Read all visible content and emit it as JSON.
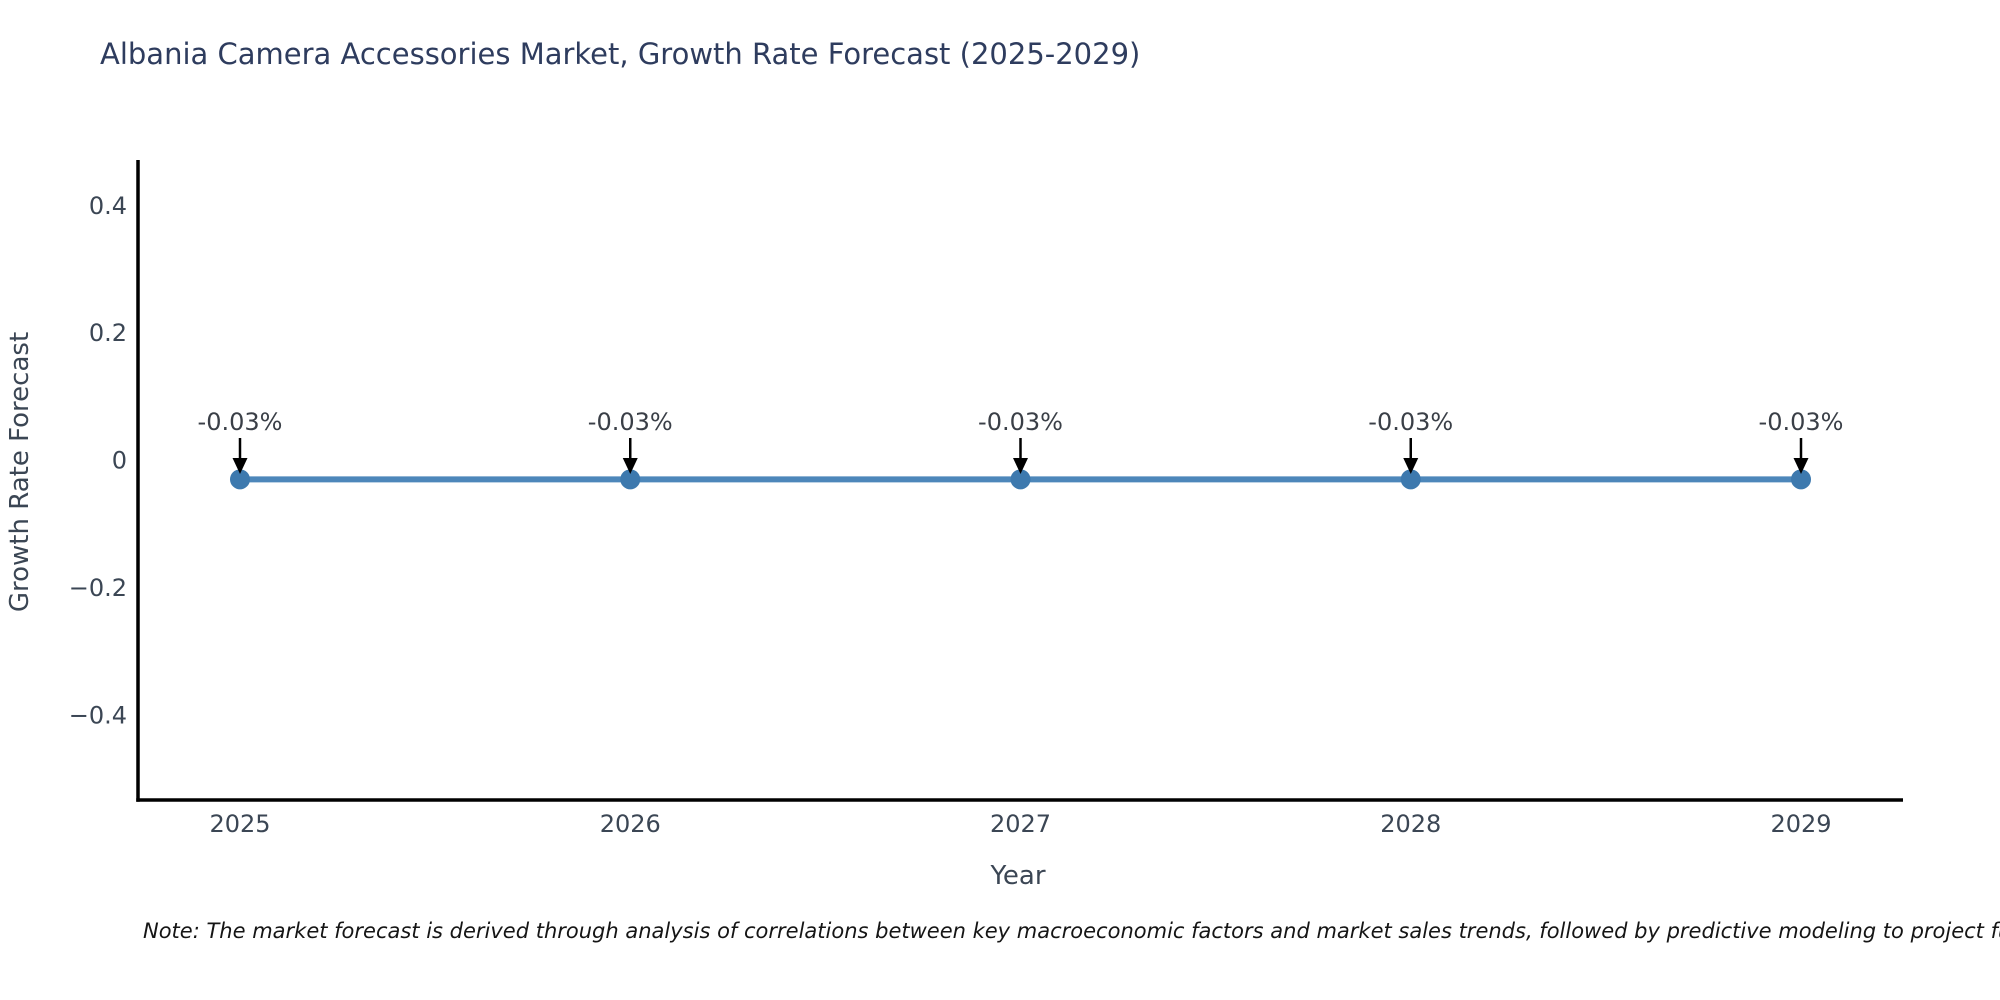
{
  "footnote": {
    "text": "Note: The market forecast is derived through analysis of correlations between key macroeconomic factors and market sales trends, followed by predictive modeling to project future sa"
  },
  "chart_data": {
    "type": "line",
    "title": "Albania Camera Accessories Market, Growth Rate Forecast (2025-2029)",
    "xlabel": "Year",
    "ylabel": "Growth Rate Forecast",
    "categories": [
      "2025",
      "2026",
      "2027",
      "2028",
      "2029"
    ],
    "series": [
      {
        "name": "Growth Rate Forecast",
        "values": [
          -0.03,
          -0.03,
          -0.03,
          -0.03,
          -0.03
        ]
      }
    ],
    "point_labels": [
      "-0.03%",
      "-0.03%",
      "-0.03%",
      "-0.03%",
      "-0.03%"
    ],
    "ylim": [
      -0.533,
      0.471
    ],
    "yticks": [
      0.4,
      0.2,
      0,
      -0.2,
      -0.4
    ],
    "ytick_labels": [
      "0.4",
      "0.2",
      "0",
      "−0.2",
      "−0.4"
    ],
    "grid": false,
    "legend": "none",
    "marker": "circle",
    "annotations_have_arrows": true,
    "colors": {
      "line": "#4d87ba",
      "marker": "#3d79ae",
      "spine": "#000000",
      "tick_text": "#3b4654",
      "axis_label_text": "#3b4654",
      "title_text": "#2e3c5e",
      "annotation_text": "#3a3f47",
      "arrow": "#000000",
      "note_text": "#151515",
      "background": "#ffffff"
    }
  }
}
